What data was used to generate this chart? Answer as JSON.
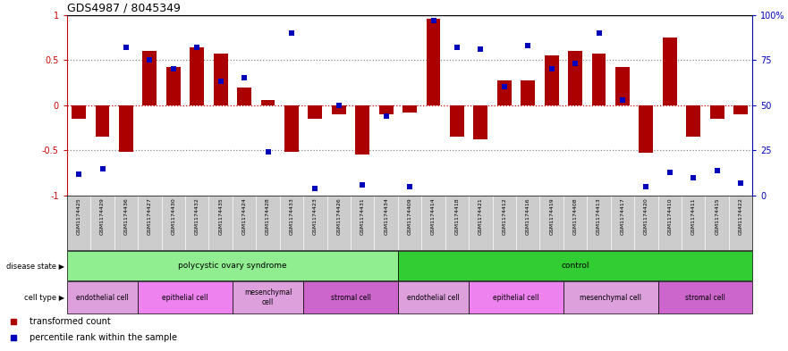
{
  "title": "GDS4987 / 8045349",
  "samples": [
    "GSM1174425",
    "GSM1174429",
    "GSM1174436",
    "GSM1174427",
    "GSM1174430",
    "GSM1174432",
    "GSM1174435",
    "GSM1174424",
    "GSM1174428",
    "GSM1174433",
    "GSM1174423",
    "GSM1174426",
    "GSM1174431",
    "GSM1174434",
    "GSM1174409",
    "GSM1174414",
    "GSM1174418",
    "GSM1174421",
    "GSM1174412",
    "GSM1174416",
    "GSM1174419",
    "GSM1174408",
    "GSM1174413",
    "GSM1174417",
    "GSM1174420",
    "GSM1174410",
    "GSM1174411",
    "GSM1174415",
    "GSM1174422"
  ],
  "bar_values": [
    -0.15,
    -0.35,
    -0.52,
    0.6,
    0.42,
    0.64,
    0.57,
    0.19,
    0.06,
    -0.52,
    -0.15,
    -0.1,
    -0.55,
    -0.1,
    -0.08,
    0.96,
    -0.35,
    -0.38,
    0.27,
    0.27,
    0.55,
    0.6,
    0.57,
    0.42,
    -0.53,
    0.75,
    -0.35,
    -0.15,
    -0.1
  ],
  "percentile_values": [
    0.12,
    0.15,
    0.82,
    0.75,
    0.7,
    0.82,
    0.63,
    0.65,
    0.24,
    0.9,
    0.04,
    0.5,
    0.06,
    0.44,
    0.05,
    0.97,
    0.82,
    0.81,
    0.6,
    0.83,
    0.7,
    0.73,
    0.9,
    0.53,
    0.05,
    0.13,
    0.1,
    0.14,
    0.07
  ],
  "disease_states": [
    {
      "label": "polycystic ovary syndrome",
      "start": 0,
      "end": 14,
      "color": "#90EE90"
    },
    {
      "label": "control",
      "start": 14,
      "end": 29,
      "color": "#32CD32"
    }
  ],
  "cell_types": [
    {
      "label": "endothelial cell",
      "start": 0,
      "end": 3,
      "color": "#DDA0DD"
    },
    {
      "label": "epithelial cell",
      "start": 3,
      "end": 7,
      "color": "#EE82EE"
    },
    {
      "label": "mesenchymal\ncell",
      "start": 7,
      "end": 10,
      "color": "#DDA0DD"
    },
    {
      "label": "stromal cell",
      "start": 10,
      "end": 14,
      "color": "#CC66CC"
    },
    {
      "label": "endothelial cell",
      "start": 14,
      "end": 17,
      "color": "#DDA0DD"
    },
    {
      "label": "epithelial cell",
      "start": 17,
      "end": 21,
      "color": "#EE82EE"
    },
    {
      "label": "mesenchymal cell",
      "start": 21,
      "end": 25,
      "color": "#DDA0DD"
    },
    {
      "label": "stromal cell",
      "start": 25,
      "end": 29,
      "color": "#CC66CC"
    }
  ],
  "bar_color": "#AA0000",
  "scatter_color": "#0000BB",
  "bg_color": "#FFFFFF",
  "label_bg_color": "#CCCCCC",
  "dotted_color": "#888888",
  "zero_line_color": "#CC0000",
  "left_axis_color": "#CC0000",
  "right_axis_color": "#0000BB",
  "yticks_left": [
    -0.5,
    0,
    0.5
  ],
  "ytick_labels_left": [
    "-0.5",
    "0",
    "0.5"
  ],
  "yticks_right_pct": [
    25,
    50,
    75
  ],
  "ytick_labels_right": [
    "25",
    "50",
    "75"
  ],
  "legend_items": [
    {
      "label": "transformed count",
      "color": "#AA0000"
    },
    {
      "label": "percentile rank within the sample",
      "color": "#0000BB"
    }
  ]
}
